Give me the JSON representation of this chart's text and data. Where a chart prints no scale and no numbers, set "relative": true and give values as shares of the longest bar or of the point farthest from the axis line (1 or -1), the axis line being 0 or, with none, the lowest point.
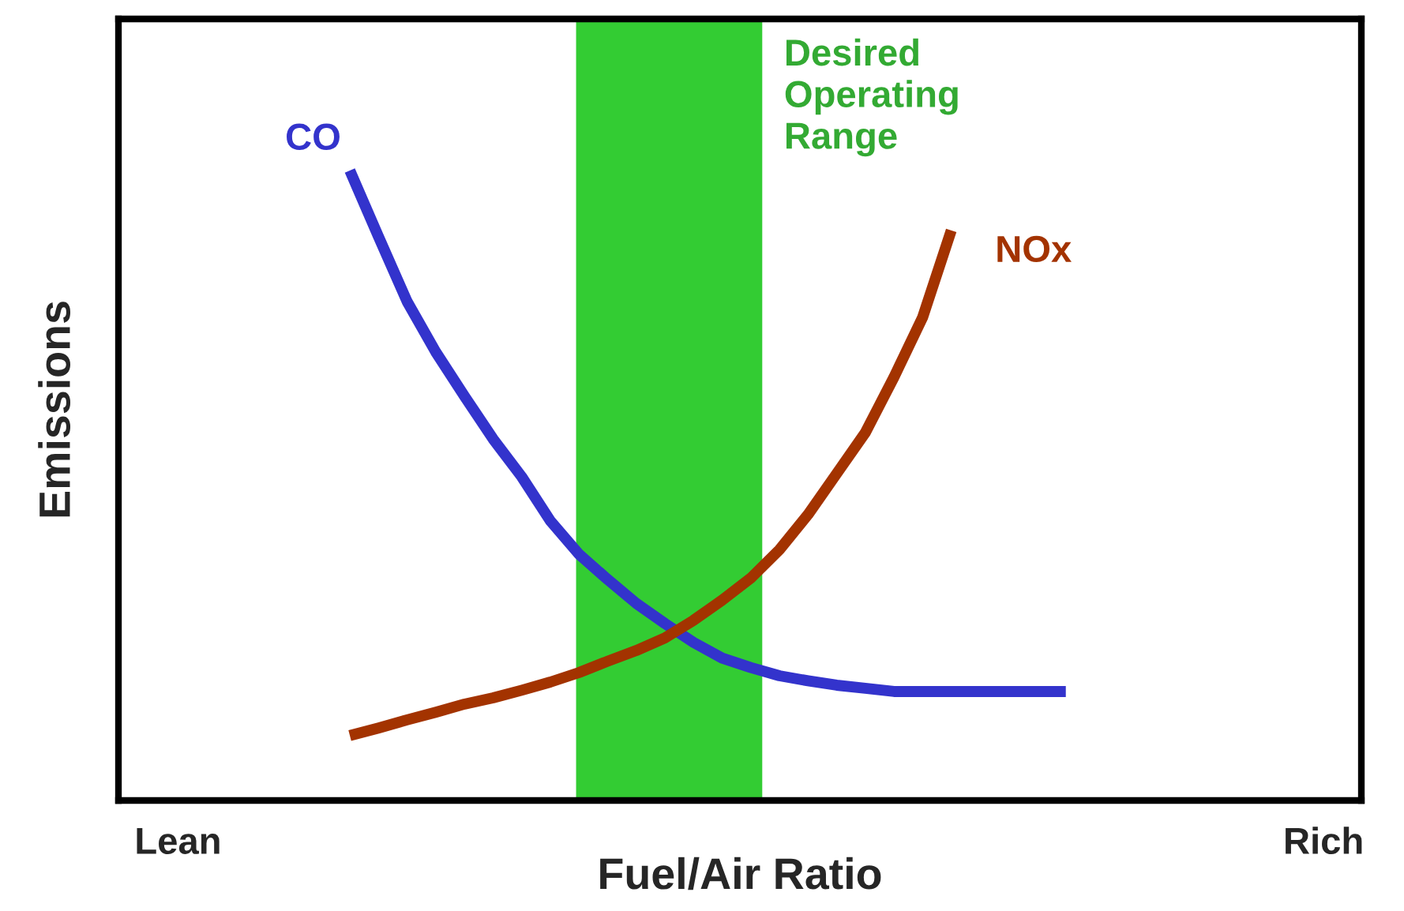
{
  "chart_data": {
    "type": "line",
    "relative": true,
    "xlabel": "Fuel/Air Ratio",
    "ylabel": "Emissions",
    "categories": [
      "Lean",
      null,
      null,
      null,
      null,
      null,
      null,
      null,
      null,
      null,
      null,
      null,
      null,
      null,
      null,
      null,
      null,
      null,
      null,
      null,
      null,
      null,
      null,
      null,
      null,
      null,
      null,
      null,
      null,
      null,
      null,
      null,
      null,
      null,
      null,
      null,
      null,
      null,
      null,
      null,
      "Rich"
    ],
    "tick_labels": "x",
    "grid": false,
    "legend": false,
    "series": [
      {
        "name": "CO",
        "color": "#3333cc",
        "values": [
          null,
          null,
          null,
          null,
          null,
          null,
          1.0,
          0.895,
          0.792,
          0.712,
          0.642,
          0.574,
          0.514,
          0.444,
          0.391,
          0.351,
          0.313,
          0.281,
          0.251,
          0.226,
          0.211,
          0.198,
          0.19,
          0.183,
          0.178,
          0.173,
          0.173,
          0.173,
          0.173,
          0.173,
          0.173,
          0.173,
          null,
          null,
          null,
          null,
          null,
          null,
          null,
          null,
          null
        ]
      },
      {
        "name": "NOx",
        "color": "#a33300",
        "values": [
          null,
          null,
          null,
          null,
          null,
          null,
          0.103,
          0.115,
          0.128,
          0.14,
          0.153,
          0.163,
          0.175,
          0.188,
          0.203,
          0.221,
          0.238,
          0.258,
          0.286,
          0.318,
          0.353,
          0.398,
          0.454,
          0.519,
          0.584,
          0.672,
          0.767,
          0.905,
          null,
          null,
          null,
          null,
          null,
          null,
          null,
          null,
          null,
          null,
          null,
          null,
          null
        ]
      }
    ],
    "annotations": [
      "Desired Operating Range"
    ]
  }
}
